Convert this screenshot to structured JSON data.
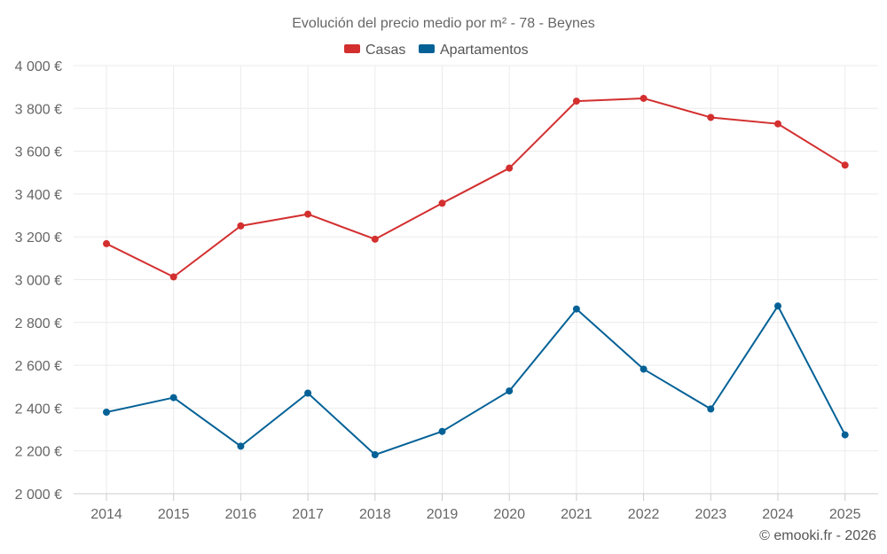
{
  "chart_data": {
    "type": "line",
    "title": "Evolución del precio medio por m² - 78 - Beynes",
    "categories": [
      "2014",
      "2015",
      "2016",
      "2017",
      "2018",
      "2019",
      "2020",
      "2021",
      "2022",
      "2023",
      "2024",
      "2025"
    ],
    "series": [
      {
        "name": "Casas",
        "color": "#d32f2f",
        "values": [
          3168,
          3013,
          3251,
          3306,
          3189,
          3357,
          3521,
          3834,
          3847,
          3758,
          3728,
          3535
        ]
      },
      {
        "name": "Apartamentos",
        "color": "#036196",
        "values": [
          2381,
          2449,
          2222,
          2470,
          2182,
          2291,
          2480,
          2863,
          2582,
          2396,
          2877,
          2275
        ]
      }
    ],
    "ylim": [
      2000,
      4000
    ],
    "yticks": [
      2000,
      2200,
      2400,
      2600,
      2800,
      3000,
      3200,
      3400,
      3600,
      3800,
      4000
    ],
    "ytick_labels": [
      "2 000 €",
      "2 200 €",
      "2 400 €",
      "2 600 €",
      "2 800 €",
      "3 000 €",
      "3 200 €",
      "3 400 €",
      "3 600 €",
      "3 800 €",
      "4 000 €"
    ],
    "xlabel": "",
    "ylabel": "",
    "grid": true,
    "legend": "top-center"
  },
  "credit": "© emooki.fr - 2026"
}
